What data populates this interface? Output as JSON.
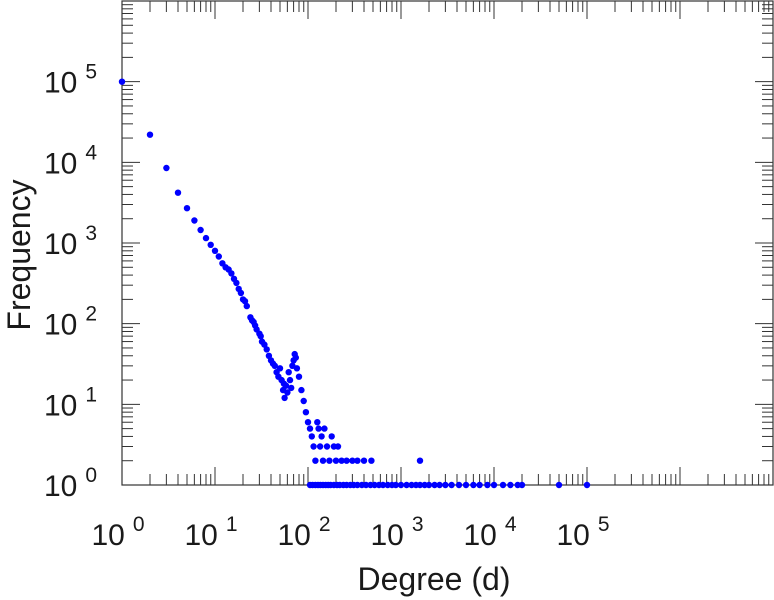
{
  "chart_data": {
    "type": "scatter",
    "xlabel": "Degree (d)",
    "ylabel": "Frequency",
    "x_scale": "log",
    "y_scale": "log",
    "xlim": [
      1,
      10000000
    ],
    "ylim": [
      1,
      1000000
    ],
    "grid": false,
    "x_ticks": [
      {
        "base": "10",
        "exp": "0",
        "value": 1
      },
      {
        "base": "10",
        "exp": "1",
        "value": 10
      },
      {
        "base": "10",
        "exp": "2",
        "value": 100
      },
      {
        "base": "10",
        "exp": "3",
        "value": 1000
      },
      {
        "base": "10",
        "exp": "4",
        "value": 10000
      },
      {
        "base": "10",
        "exp": "5",
        "value": 100000
      }
    ],
    "y_ticks": [
      {
        "base": "10",
        "exp": "0",
        "value": 1
      },
      {
        "base": "10",
        "exp": "1",
        "value": 10
      },
      {
        "base": "10",
        "exp": "2",
        "value": 100
      },
      {
        "base": "10",
        "exp": "3",
        "value": 1000
      },
      {
        "base": "10",
        "exp": "4",
        "value": 10000
      },
      {
        "base": "10",
        "exp": "5",
        "value": 100000
      }
    ],
    "marker_color": "#0000ff",
    "series": [
      {
        "points": [
          [
            1,
            100000
          ],
          [
            2,
            22000
          ],
          [
            3,
            8500
          ],
          [
            4,
            4200
          ],
          [
            5,
            2700
          ],
          [
            6,
            1900
          ],
          [
            7,
            1450
          ],
          [
            8,
            1150
          ],
          [
            9,
            950
          ],
          [
            10,
            800
          ],
          [
            11,
            680
          ],
          [
            12,
            560
          ],
          [
            13,
            500
          ],
          [
            14,
            470
          ],
          [
            15,
            420
          ],
          [
            16,
            360
          ],
          [
            17,
            320
          ],
          [
            18,
            270
          ],
          [
            19,
            240
          ],
          [
            20,
            200
          ],
          [
            21,
            190
          ],
          [
            22,
            165
          ],
          [
            24,
            120
          ],
          [
            25,
            110
          ],
          [
            26,
            105
          ],
          [
            27,
            95
          ],
          [
            28,
            85
          ],
          [
            30,
            75
          ],
          [
            31,
            70
          ],
          [
            32,
            60
          ],
          [
            34,
            55
          ],
          [
            36,
            48
          ],
          [
            38,
            40
          ],
          [
            40,
            35
          ],
          [
            42,
            32
          ],
          [
            44,
            30
          ],
          [
            46,
            25
          ],
          [
            48,
            22
          ],
          [
            50,
            28
          ],
          [
            52,
            20
          ],
          [
            54,
            15
          ],
          [
            55,
            18
          ],
          [
            56,
            12
          ],
          [
            58,
            17
          ],
          [
            60,
            14
          ],
          [
            62,
            25
          ],
          [
            64,
            20
          ],
          [
            66,
            16
          ],
          [
            68,
            30
          ],
          [
            70,
            35
          ],
          [
            72,
            42
          ],
          [
            74,
            38
          ],
          [
            76,
            28
          ],
          [
            80,
            22
          ],
          [
            85,
            15
          ],
          [
            90,
            11
          ],
          [
            95,
            8
          ],
          [
            100,
            6
          ],
          [
            105,
            5
          ],
          [
            110,
            4
          ],
          [
            115,
            3
          ],
          [
            120,
            2
          ],
          [
            126,
            6
          ],
          [
            130,
            5
          ],
          [
            135,
            3
          ],
          [
            140,
            4
          ],
          [
            145,
            2
          ],
          [
            150,
            5
          ],
          [
            160,
            3
          ],
          [
            170,
            2
          ],
          [
            180,
            4
          ],
          [
            190,
            3
          ],
          [
            200,
            2
          ],
          [
            210,
            3
          ],
          [
            230,
            2
          ],
          [
            260,
            2
          ],
          [
            300,
            2
          ],
          [
            340,
            2
          ],
          [
            400,
            2
          ],
          [
            480,
            2
          ],
          [
            1600,
            2
          ],
          [
            105,
            1
          ],
          [
            112,
            1
          ],
          [
            120,
            1
          ],
          [
            128,
            1
          ],
          [
            136,
            1
          ],
          [
            145,
            1
          ],
          [
            155,
            1
          ],
          [
            165,
            1
          ],
          [
            175,
            1
          ],
          [
            190,
            1
          ],
          [
            205,
            1
          ],
          [
            220,
            1
          ],
          [
            240,
            1
          ],
          [
            260,
            1
          ],
          [
            285,
            1
          ],
          [
            310,
            1
          ],
          [
            340,
            1
          ],
          [
            380,
            1
          ],
          [
            420,
            1
          ],
          [
            470,
            1
          ],
          [
            520,
            1
          ],
          [
            580,
            1
          ],
          [
            640,
            1
          ],
          [
            720,
            1
          ],
          [
            800,
            1
          ],
          [
            880,
            1
          ],
          [
            1000,
            1
          ],
          [
            1150,
            1
          ],
          [
            1300,
            1
          ],
          [
            1450,
            1
          ],
          [
            1600,
            1
          ],
          [
            1800,
            1
          ],
          [
            2000,
            1
          ],
          [
            2300,
            1
          ],
          [
            2600,
            1
          ],
          [
            3000,
            1
          ],
          [
            3500,
            1
          ],
          [
            4200,
            1
          ],
          [
            5000,
            1
          ],
          [
            6000,
            1
          ],
          [
            7000,
            1
          ],
          [
            8500,
            1
          ],
          [
            10000,
            1
          ],
          [
            12500,
            1
          ],
          [
            15000,
            1
          ],
          [
            18000,
            1
          ],
          [
            20000,
            1
          ],
          [
            50000,
            1
          ],
          [
            100000,
            1
          ]
        ]
      }
    ]
  }
}
